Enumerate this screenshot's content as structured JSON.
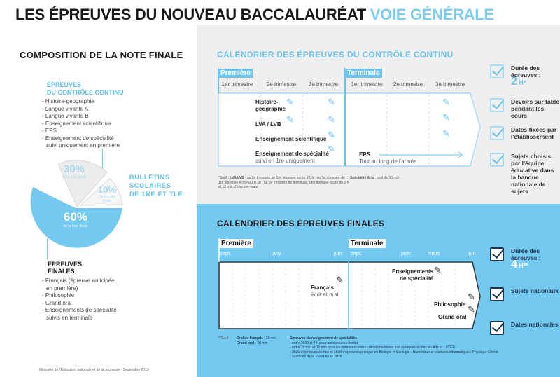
{
  "header": {
    "title": "LES ÉPREUVES DU NOUVEAU BACCALAURÉAT",
    "title_accent": "VOIE GÉNÉRALE"
  },
  "colors": {
    "blue": "#74c9f1",
    "accent": "#5bbfee",
    "gray": "#efefef",
    "orange": "#f28a2e"
  },
  "composition": {
    "title": "COMPOSITION DE LA NOTE FINALE",
    "cc_heading": [
      "ÉPREUVES",
      "DU CONTRÔLE CONTINU"
    ],
    "cc_items": [
      "Histoire-géographie",
      "Langue vivante A",
      "Langue vivante B",
      "Enseignement scientifique",
      "EPS",
      "Enseignement de spécialité suivi uniquement en première"
    ],
    "pie": [
      {
        "label": "30%",
        "sub": "de la note finale",
        "value": 30
      },
      {
        "label": "10%",
        "sub": "de la note finale",
        "value": 10
      },
      {
        "label": "60%",
        "sub": "de la note finale",
        "value": 60
      }
    ],
    "bulletins": [
      "BULLETINS",
      "SCOLAIRES",
      "DE 1RE ET TLE"
    ],
    "finals_heading": [
      "ÉPREUVES",
      "FINALES"
    ],
    "finals_items": [
      "Français (épreuve anticipée en première)",
      "Philosophie",
      "Grand oral",
      "Enseignements de spécialité suivis en terminale"
    ],
    "footer": "Ministère de l'Éducation nationale et de la Jeunesse - Septembre 2019"
  },
  "cc_calendar": {
    "title": "CALENDRIER DES ÉPREUVES DU CONTRÔLE CONTINU",
    "premiere": "Première",
    "terminale": "Terminale",
    "trimesters": [
      "1er trimestre",
      "2e trimestre",
      "3e trimestre",
      "1er trimestre",
      "2e trimestre",
      "3e trimestre"
    ],
    "events": {
      "hg": [
        "Histoire-",
        "géographie"
      ],
      "lv": "LVA / LVB",
      "es": "Enseignement scientifique",
      "spe": "Enseignement de spécialité",
      "spe_sub": "suivi en 1re uniquement",
      "eps": "EPS",
      "eps_sub": "Tout au long de l'année"
    },
    "note_star": "*Sauf :",
    "note_lv_bold": "LVA/LVB",
    "note_lv": " : au 2e trimestre de 1re, épreuve écrite d'1 h ; au 3e trimestre de 1re, épreuve écrite d'1 h 30 ; au 3e trimestre de terminale, une épreuve écrite de 2 h et 10 min d'épreuve orale",
    "note_arts_bold": "Spécialité Arts",
    "note_arts": " : oral de 30 min",
    "checklist": [
      {
        "text": "Durée des épreuves :",
        "big": "2",
        "unit": "H*"
      },
      {
        "text": "Devoirs sur table pendant les cours"
      },
      {
        "text": "Dates fixées par l'établissement"
      },
      {
        "text": "Sujets choisis par l'équipe éducative dans la banque nationale de sujets"
      }
    ]
  },
  "final_calendar": {
    "title": "CALENDRIER DES ÉPREUVES FINALES",
    "premiere": "Première",
    "terminale": "Terminale",
    "months_p": [
      "sept.",
      "janv.",
      "juin"
    ],
    "months_t": [
      "sept.",
      "janv.",
      "mars",
      "juin"
    ],
    "events": {
      "fr": "Français",
      "fr_sub": "écrit et oral",
      "spe": [
        "Enseignements",
        "de spécialité"
      ],
      "philo": "Philosophie",
      "go": "Grand oral"
    },
    "note_star": "**Sauf :",
    "note_fr_bold": "Oral de français",
    "note_fr": " : 20 min",
    "note_go_bold": "Grand oral",
    "note_go": " : 20 min",
    "note_spe_bold": "Épreuves d'enseignement de spécialités",
    "note_spe": [
      "- entre 3h30 et 4 h pour les épreuves écrites",
      "- entre 20 min et 30 min pour les épreuves orales complémentaires aux épreuves écrites en Arts et LLCER",
      "- 3h30 d'épreuves écrites et 1h30 d'épreuves pratique en Biologie et Écologie ; Numérique et sciences informatiques; Physique-Chimie ; Sciences de la Vie et de la Terre"
    ],
    "checklist": [
      {
        "text": "Durée des épreuves :",
        "big": "4",
        "unit": "H**"
      },
      {
        "text": "Sujets nationaux"
      },
      {
        "text": "Dates nationales"
      }
    ]
  }
}
